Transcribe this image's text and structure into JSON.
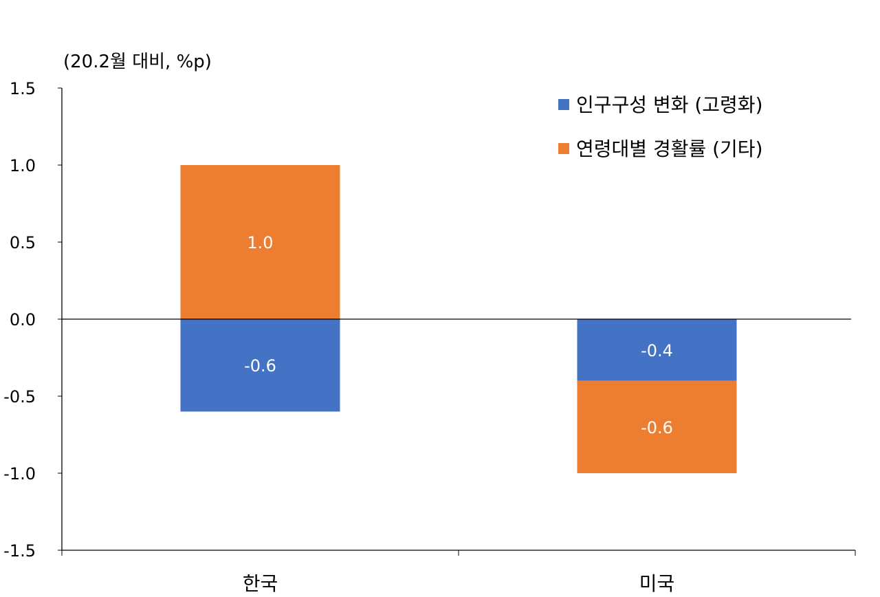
{
  "chart_data": {
    "type": "bar",
    "stacked": true,
    "unit_label": "(20.2월 대비, %p)",
    "categories": [
      "한국",
      "미국"
    ],
    "series": [
      {
        "name": "인구구성 변화 (고령화)",
        "color": "#4472C4",
        "values": [
          -0.6,
          -0.4
        ]
      },
      {
        "name": "연령대별 경활률 (기타)",
        "color": "#ED7D31",
        "values": [
          1.0,
          -0.6
        ]
      }
    ],
    "data_labels": [
      [
        "-0.6",
        "-0.4"
      ],
      [
        "1.0",
        "-0.6"
      ]
    ],
    "ylim": [
      -1.5,
      1.5
    ],
    "yticks": [
      1.5,
      1.0,
      0.5,
      0.0,
      -0.5,
      -1.0,
      -1.5
    ],
    "ytick_labels": [
      "1.5",
      "1.0",
      "0.5",
      "0.0",
      "-0.5",
      "-1.0",
      "-1.5"
    ],
    "grid": false,
    "legend_position": "top-right"
  }
}
